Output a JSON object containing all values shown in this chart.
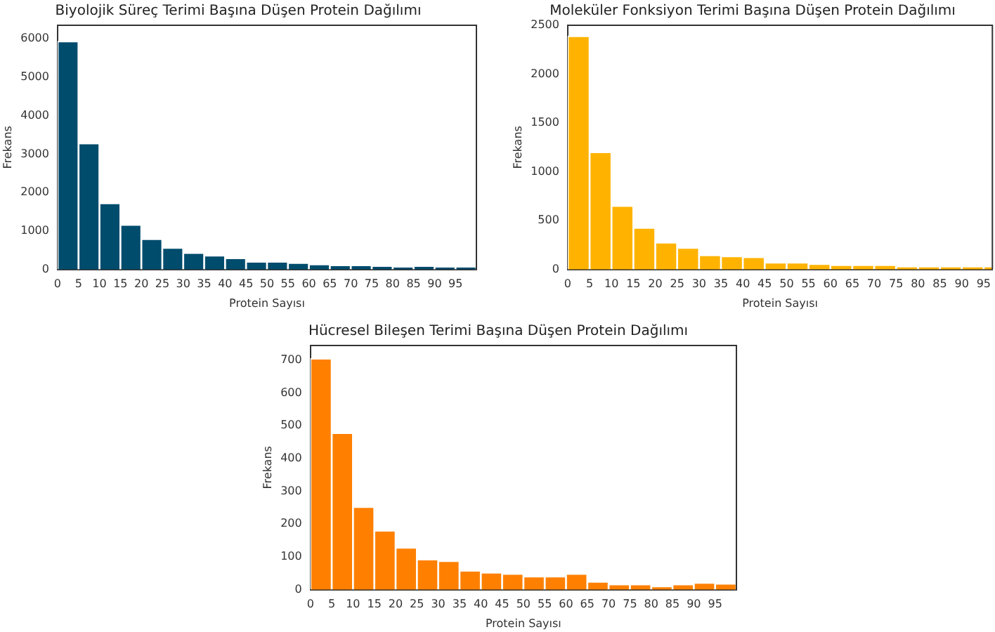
{
  "chart_data": [
    {
      "type": "histogram",
      "title": "Biyolojik Süreç Terimi Başına Düşen Protein Dağılımı",
      "xlabel": "Protein Sayısı",
      "ylabel": "Frekans",
      "color": "#004c6d",
      "bins": [
        0,
        5,
        10,
        15,
        20,
        25,
        30,
        35,
        40,
        45,
        50,
        55,
        60,
        65,
        70,
        75,
        80,
        85,
        90,
        95,
        100
      ],
      "values": [
        5930,
        3280,
        1720,
        1160,
        790,
        560,
        430,
        360,
        290,
        200,
        200,
        170,
        130,
        110,
        110,
        90,
        70,
        90,
        70,
        70
      ],
      "xlim": [
        0,
        100
      ],
      "xticks": [
        0,
        5,
        10,
        15,
        20,
        25,
        30,
        35,
        40,
        45,
        50,
        55,
        60,
        65,
        70,
        75,
        80,
        85,
        90,
        95
      ],
      "ylim": [
        0,
        6350
      ],
      "yticks": [
        0,
        1000,
        2000,
        3000,
        4000,
        5000,
        6000
      ],
      "grid": false,
      "legend": false
    },
    {
      "type": "histogram",
      "title": "Moleküler Fonksiyon Terimi Başına Düşen Protein Dağılımı",
      "xlabel": "Protein Sayısı",
      "ylabel": "Frekans",
      "color": "#ffb300",
      "bins": [
        0,
        5,
        10,
        15,
        20,
        25,
        30,
        35,
        40,
        45,
        50,
        55,
        60,
        65,
        70,
        75,
        80,
        85,
        90,
        95,
        100
      ],
      "values": [
        2390,
        1200,
        650,
        425,
        275,
        220,
        145,
        135,
        125,
        70,
        70,
        55,
        45,
        45,
        45,
        30,
        30,
        30,
        30,
        30
      ],
      "xlim": [
        0,
        97
      ],
      "xticks": [
        0,
        5,
        10,
        15,
        20,
        25,
        30,
        35,
        40,
        45,
        50,
        55,
        60,
        65,
        70,
        75,
        80,
        85,
        90,
        95
      ],
      "ylim": [
        0,
        2500
      ],
      "yticks": [
        0,
        500,
        1000,
        1500,
        2000,
        2500
      ],
      "grid": false,
      "legend": false
    },
    {
      "type": "histogram",
      "title": "Hücresel Bileşen Terimi Başına Düşen Protein Dağılımı",
      "xlabel": "Protein Sayısı",
      "ylabel": "Frekans",
      "color": "#ff8000",
      "bins": [
        0,
        5,
        10,
        15,
        20,
        25,
        30,
        35,
        40,
        45,
        50,
        55,
        60,
        65,
        70,
        75,
        80,
        85,
        90,
        95,
        100
      ],
      "values": [
        705,
        478,
        252,
        180,
        128,
        92,
        87,
        58,
        52,
        48,
        40,
        40,
        48,
        24,
        16,
        16,
        10,
        16,
        21,
        18
      ],
      "xlim": [
        0,
        100
      ],
      "xticks": [
        0,
        5,
        10,
        15,
        20,
        25,
        30,
        35,
        40,
        45,
        50,
        55,
        60,
        65,
        70,
        75,
        80,
        85,
        90,
        95
      ],
      "ylim": [
        0,
        745
      ],
      "yticks": [
        0,
        100,
        200,
        300,
        400,
        500,
        600,
        700
      ],
      "grid": false,
      "legend": false
    }
  ]
}
